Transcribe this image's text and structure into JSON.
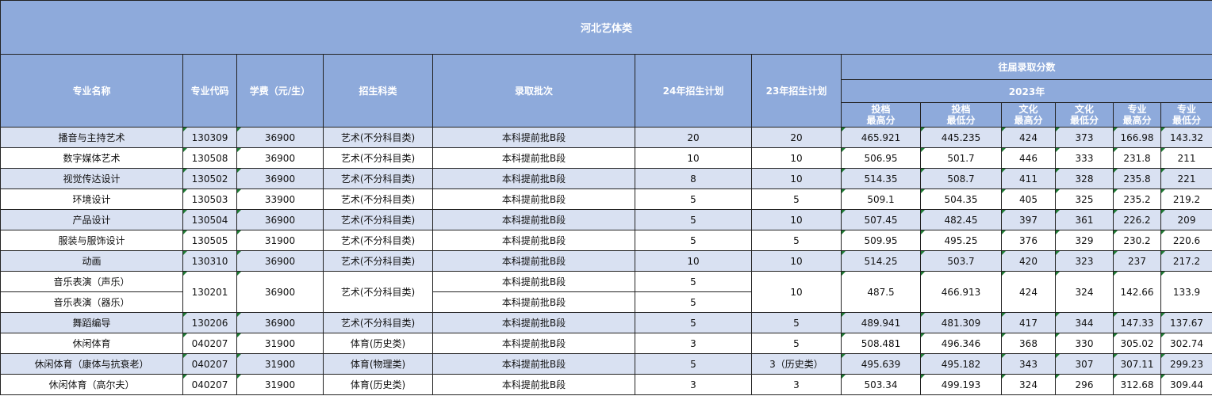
{
  "title": "河北艺体类",
  "headers": {
    "name": "专业名称",
    "code": "专业代码",
    "fee": "学费（元/生）",
    "category": "招生科类",
    "batch": "录取批次",
    "plan24": "24年招生计划",
    "plan23": "23年招生计划",
    "past": "往届录取分数",
    "year": "2023年",
    "score_cols": [
      "投档\n最高分",
      "投档\n最低分",
      "文化\n最高分",
      "文化\n最低分",
      "专业\n最高分",
      "专业\n最低分"
    ]
  },
  "colors": {
    "header_bg": "#8eaadb",
    "row_alt_bg": "#d9e1f2",
    "marker": "#1e7b34"
  },
  "rows": [
    {
      "name": "播音与主持艺术",
      "code": "130309",
      "fee": "36900",
      "category": "艺术(不分科目类)",
      "batch": "本科提前批B段",
      "plan24": "20",
      "plan23": "20",
      "scores": [
        "465.921",
        "445.235",
        "424",
        "373",
        "166.98",
        "143.32"
      ]
    },
    {
      "name": "数字媒体艺术",
      "code": "130508",
      "fee": "36900",
      "category": "艺术(不分科目类)",
      "batch": "本科提前批B段",
      "plan24": "10",
      "plan23": "10",
      "scores": [
        "506.95",
        "501.7",
        "446",
        "333",
        "231.8",
        "211"
      ]
    },
    {
      "name": "视觉传达设计",
      "code": "130502",
      "fee": "36900",
      "category": "艺术(不分科目类)",
      "batch": "本科提前批B段",
      "plan24": "8",
      "plan23": "10",
      "scores": [
        "514.35",
        "508.7",
        "411",
        "328",
        "235.8",
        "221"
      ]
    },
    {
      "name": "环境设计",
      "code": "130503",
      "fee": "33900",
      "category": "艺术(不分科目类)",
      "batch": "本科提前批B段",
      "plan24": "5",
      "plan23": "5",
      "scores": [
        "509.1",
        "504.35",
        "405",
        "325",
        "235.2",
        "219.2"
      ]
    },
    {
      "name": "产品设计",
      "code": "130504",
      "fee": "36900",
      "category": "艺术(不分科目类)",
      "batch": "本科提前批B段",
      "plan24": "5",
      "plan23": "10",
      "scores": [
        "507.45",
        "482.45",
        "397",
        "361",
        "226.2",
        "209"
      ]
    },
    {
      "name": "服装与服饰设计",
      "code": "130505",
      "fee": "31900",
      "category": "艺术(不分科目类)",
      "batch": "本科提前批B段",
      "plan24": "5",
      "plan23": "5",
      "scores": [
        "509.95",
        "495.25",
        "376",
        "329",
        "230.2",
        "220.6"
      ]
    },
    {
      "name": "动画",
      "code": "130310",
      "fee": "36900",
      "category": "艺术(不分科目类)",
      "batch": "本科提前批B段",
      "plan24": "10",
      "plan23": "10",
      "scores": [
        "514.25",
        "503.7",
        "420",
        "323",
        "237",
        "217.2"
      ]
    },
    {
      "sub": [
        {
          "name": "音乐表演（声乐）",
          "batch": "本科提前批B段",
          "plan24": "5"
        },
        {
          "name": "音乐表演（器乐）",
          "batch": "本科提前批B段",
          "plan24": "5"
        }
      ],
      "code": "130201",
      "fee": "36900",
      "category": "艺术(不分科目类)",
      "plan23": "10",
      "scores": [
        "487.5",
        "466.913",
        "424",
        "324",
        "142.66",
        "133.9"
      ]
    },
    {
      "name": "舞蹈编导",
      "code": "130206",
      "fee": "36900",
      "category": "艺术(不分科目类)",
      "batch": "本科提前批B段",
      "plan24": "5",
      "plan23": "5",
      "scores": [
        "489.941",
        "481.309",
        "417",
        "344",
        "147.33",
        "137.67"
      ]
    },
    {
      "name": "休闲体育",
      "code": "040207",
      "fee": "31900",
      "category": "体育(历史类)",
      "batch": "本科提前批B段",
      "plan24": "3",
      "plan23": "5",
      "scores": [
        "508.481",
        "496.346",
        "368",
        "330",
        "305.02",
        "302.74"
      ]
    },
    {
      "name": "休闲体育（康体与抗衰老）",
      "code": "040207",
      "fee": "31900",
      "category": "体育(物理类)",
      "batch": "本科提前批B段",
      "plan24": "5",
      "plan23": "3（历史类）",
      "scores": [
        "495.639",
        "495.182",
        "343",
        "307",
        "307.11",
        "299.23"
      ]
    },
    {
      "name": "休闲体育（高尔夫）",
      "code": "040207",
      "fee": "31900",
      "category": "体育(历史类)",
      "batch": "本科提前批B段",
      "plan24": "3",
      "plan23": "3",
      "scores": [
        "503.34",
        "499.193",
        "324",
        "296",
        "312.68",
        "309.44"
      ]
    }
  ]
}
